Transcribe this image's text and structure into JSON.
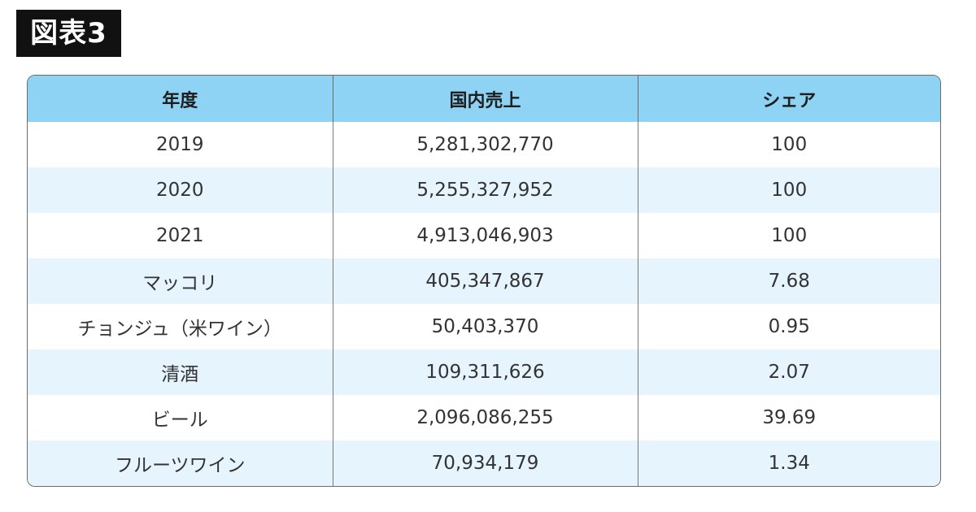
{
  "figure_label": "図表3",
  "table": {
    "headers": [
      "年度",
      "国内売上",
      "シェア"
    ],
    "rows": [
      [
        "2019",
        "5,281,302,770",
        "100"
      ],
      [
        "2020",
        "5,255,327,952",
        "100"
      ],
      [
        "2021",
        "4,913,046,903",
        "100"
      ],
      [
        "マッコリ",
        "405,347,867",
        "7.68"
      ],
      [
        "チョンジュ（米ワイン）",
        "50,403,370",
        "0.95"
      ],
      [
        "清酒",
        "109,311,626",
        "2.07"
      ],
      [
        "ビール",
        "2,096,086,255",
        "39.69"
      ],
      [
        "フルーツワイン",
        "70,934,179",
        "1.34"
      ]
    ]
  },
  "colors": {
    "label_background": "#111111",
    "header_background": "#8fd3f4",
    "stripe_background": "#e6f4fd",
    "border": "#6b6b6b"
  }
}
